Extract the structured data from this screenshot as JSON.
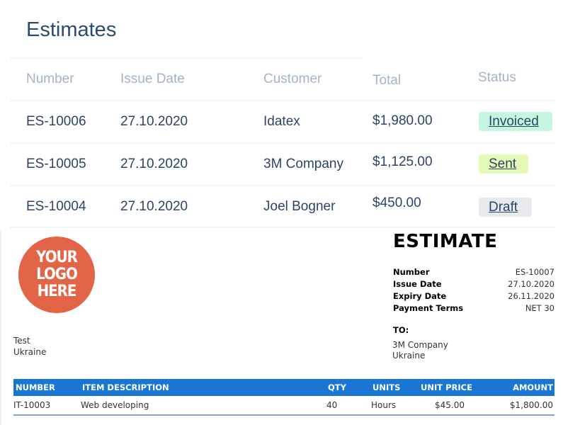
{
  "list": {
    "title": "Estimates",
    "columns": [
      "Number",
      "Issue Date",
      "Customer",
      "Total",
      "Status"
    ],
    "rows": [
      {
        "number": "ES-10006",
        "issue_date": "27.10.2020",
        "customer": "Idatex",
        "total": "$1,980.00",
        "status": "Invoiced"
      },
      {
        "number": "ES-10005",
        "issue_date": "27.10.2020",
        "customer": "3M Company",
        "total": "$1,125.00",
        "status": "Sent"
      },
      {
        "number": "ES-10004",
        "issue_date": "27.10.2020",
        "customer": "Joel Bogner",
        "total": "$450.00",
        "status": "Draft"
      }
    ],
    "status_colors": {
      "Invoiced": "#c5f5df",
      "Sent": "#e6fab8",
      "Draft": "#e8e9ec"
    }
  },
  "document": {
    "logo_text": "YOUR LOGO HERE",
    "logo_color": "#e36547",
    "heading": "ESTIMATE",
    "meta": [
      {
        "label": "Number",
        "value": "ES-10007"
      },
      {
        "label": "Issue Date",
        "value": "27.10.2020"
      },
      {
        "label": "Expiry Date",
        "value": "26.11.2020"
      },
      {
        "label": "Payment Terms",
        "value": "NET 30"
      }
    ],
    "from": {
      "name": "Test",
      "country": "Ukraine"
    },
    "to_label": "TO:",
    "to": {
      "name": "3M Company",
      "country": "Ukraine"
    },
    "table": {
      "header_color": "#1976d2",
      "columns": [
        "NUMBER",
        "ITEM DESCRIPTION",
        "QTY",
        "UNITS",
        "UNIT PRICE",
        "AMOUNT"
      ],
      "rows": [
        {
          "number": "IT-10003",
          "description": "Web developing",
          "qty": "40",
          "units": "Hours",
          "unit_price": "$45.00",
          "amount": "$1,800.00"
        }
      ]
    }
  }
}
